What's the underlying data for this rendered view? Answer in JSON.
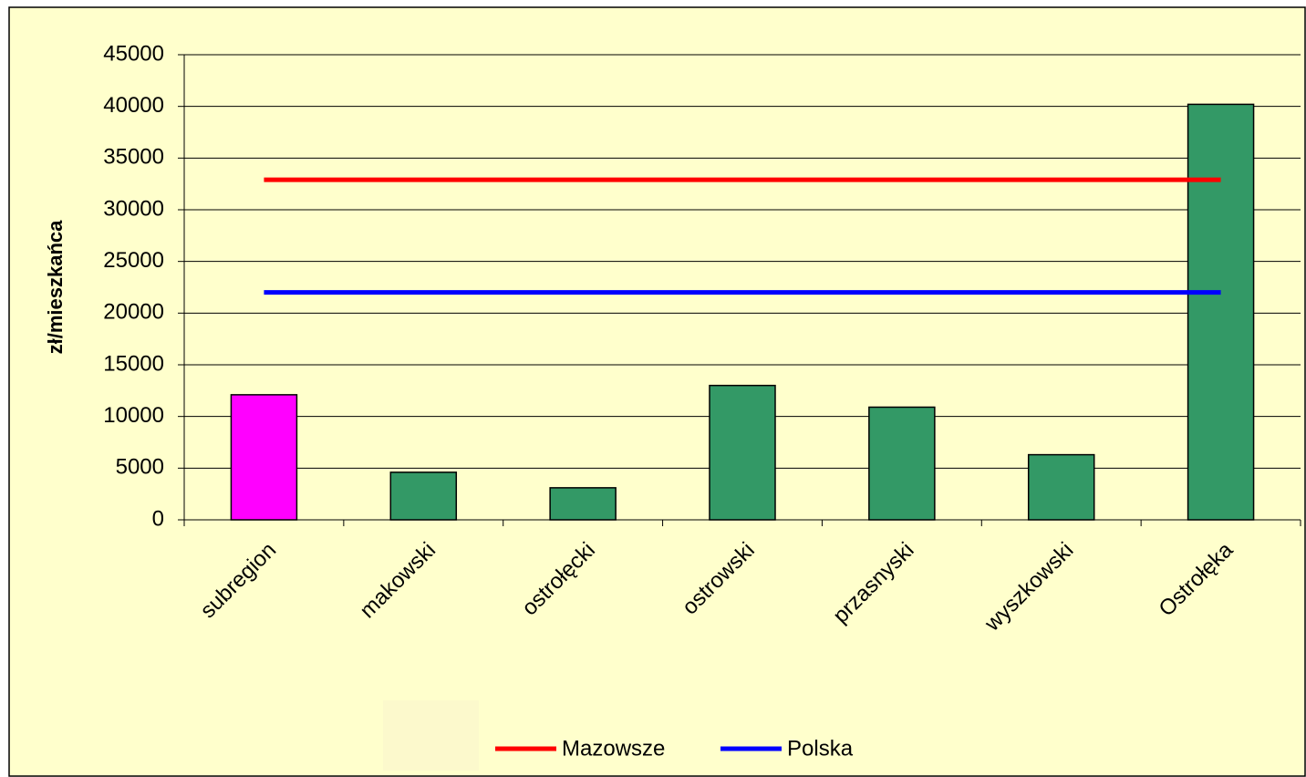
{
  "chart_data": {
    "type": "bar",
    "y_label": "zł/mieszkańca",
    "categories": [
      "subregion",
      "makowski",
      "ostrołęcki",
      "ostrowski",
      "przasnyski",
      "wyszkowski",
      "Ostrołęka"
    ],
    "values": [
      12100,
      4600,
      3100,
      13000,
      10900,
      6300,
      40200
    ],
    "colors": [
      "#ff00ff",
      "#339966",
      "#339966",
      "#339966",
      "#339966",
      "#339966",
      "#339966"
    ],
    "series": [
      {
        "name": "Mazowsze",
        "color": "#ff0000",
        "values": [
          32900,
          32900,
          32900,
          32900,
          32900,
          32900,
          32900
        ]
      },
      {
        "name": "Polska",
        "color": "#0000ff",
        "values": [
          22000,
          22000,
          22000,
          22000,
          22000,
          22000,
          22000
        ]
      }
    ],
    "ylim": [
      0,
      45000
    ],
    "yticks": [
      0,
      5000,
      10000,
      15000,
      20000,
      25000,
      30000,
      35000,
      40000,
      45000
    ],
    "grid": true,
    "legend": "bottom"
  }
}
